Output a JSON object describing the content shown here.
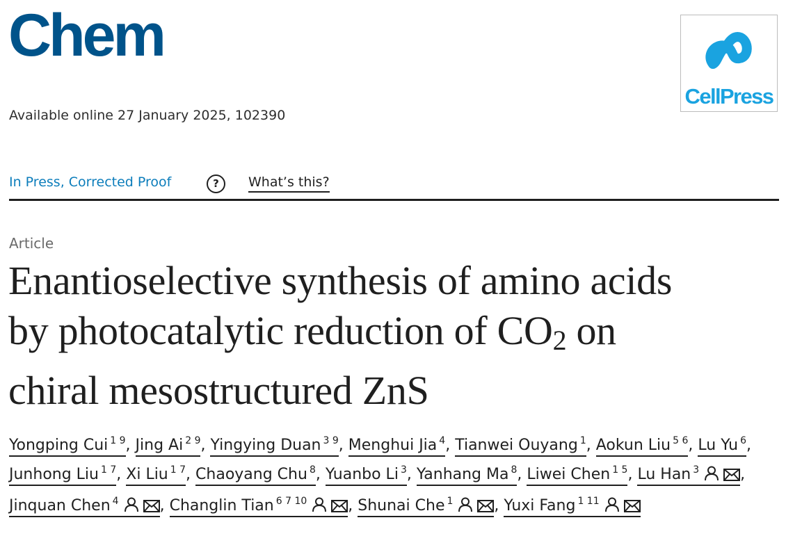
{
  "journal": {
    "name": "Chem"
  },
  "publisher": {
    "name": "CellPress",
    "brand_color": "#1aa3e0"
  },
  "availability": "Available online 27 January 2025, 102390",
  "status": {
    "label": "In Press, Corrected Proof",
    "help_label": "?",
    "whats_this": "What’s this?"
  },
  "article": {
    "type": "Article",
    "title_line1": "Enantioselective synthesis of amino acids",
    "title_line2_pre": "by photocatalytic reduction of CO",
    "title_subscript": "2",
    "title_line2_post": " on",
    "title_line3": "chiral mesostructured ZnS"
  },
  "authors": [
    {
      "name": "Yongping Cui",
      "sup": "1 9"
    },
    {
      "name": "Jing Ai",
      "sup": "2 9"
    },
    {
      "name": "Yingying Duan",
      "sup": "3 9"
    },
    {
      "name": "Menghui Jia",
      "sup": "4"
    },
    {
      "name": "Tianwei Ouyang",
      "sup": "1"
    },
    {
      "name": "Aokun Liu",
      "sup": "5 6"
    },
    {
      "name": "Lu Yu",
      "sup": "6"
    },
    {
      "name": "Junhong Liu",
      "sup": "1 7"
    },
    {
      "name": "Xi Liu",
      "sup": "1 7"
    },
    {
      "name": "Chaoyang Chu",
      "sup": "8"
    },
    {
      "name": "Yuanbo Li",
      "sup": "3"
    },
    {
      "name": "Yanhang Ma",
      "sup": "8"
    },
    {
      "name": "Liwei Chen",
      "sup": "1 5"
    },
    {
      "name": "Lu Han",
      "sup": "3",
      "corresponding": true
    },
    {
      "name": "Jinquan Chen",
      "sup": "4",
      "corresponding": true
    },
    {
      "name": "Changlin Tian",
      "sup": "6 7 10",
      "corresponding": true
    },
    {
      "name": "Shunai Che",
      "sup": "1",
      "corresponding": true
    },
    {
      "name": "Yuxi Fang",
      "sup": "1 11",
      "corresponding": true
    }
  ],
  "icons": {
    "person": "person-icon",
    "mail": "mail-icon",
    "help": "help-icon"
  }
}
